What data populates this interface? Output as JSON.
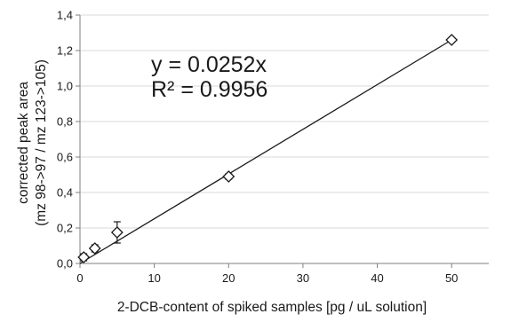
{
  "chart_data": {
    "type": "scatter",
    "title": "",
    "xlabel": "2-DCB-content of spiked samples [pg / uL solution]",
    "ylabel_lines": [
      "corrected peak area",
      "(mz 98->97 / mz 123->105)"
    ],
    "xlim": [
      0,
      55
    ],
    "ylim": [
      0,
      1.4
    ],
    "x_ticks": [
      0,
      10,
      20,
      30,
      40,
      50
    ],
    "x_tick_labels": [
      "0",
      "10",
      "20",
      "30",
      "40",
      "50"
    ],
    "y_ticks": [
      0,
      0.2,
      0.4,
      0.6,
      0.8,
      1.0,
      1.2,
      1.4
    ],
    "y_tick_labels": [
      "0,0",
      "0,2",
      "0,4",
      "0,6",
      "0,8",
      "1,0",
      "1,2",
      "1,4"
    ],
    "grid": "horizontal",
    "marker": "diamond",
    "series": [
      {
        "points": [
          {
            "x": 0.5,
            "y": 0.035,
            "err": 0.02
          },
          {
            "x": 2,
            "y": 0.085,
            "err": 0.02
          },
          {
            "x": 5,
            "y": 0.175,
            "err": 0.06
          },
          {
            "x": 20,
            "y": 0.49,
            "err": 0.015
          },
          {
            "x": 50,
            "y": 1.26,
            "err": 0.01
          }
        ]
      }
    ],
    "trendline": {
      "slope": 0.0252,
      "x_range": [
        0,
        50
      ]
    },
    "annotations": [
      "y = 0.0252x",
      "R² = 0.9956"
    ],
    "colors": {
      "axis": "#7f7f7f",
      "grid": "#d9d9d9",
      "data": "#1a1a1a"
    }
  }
}
